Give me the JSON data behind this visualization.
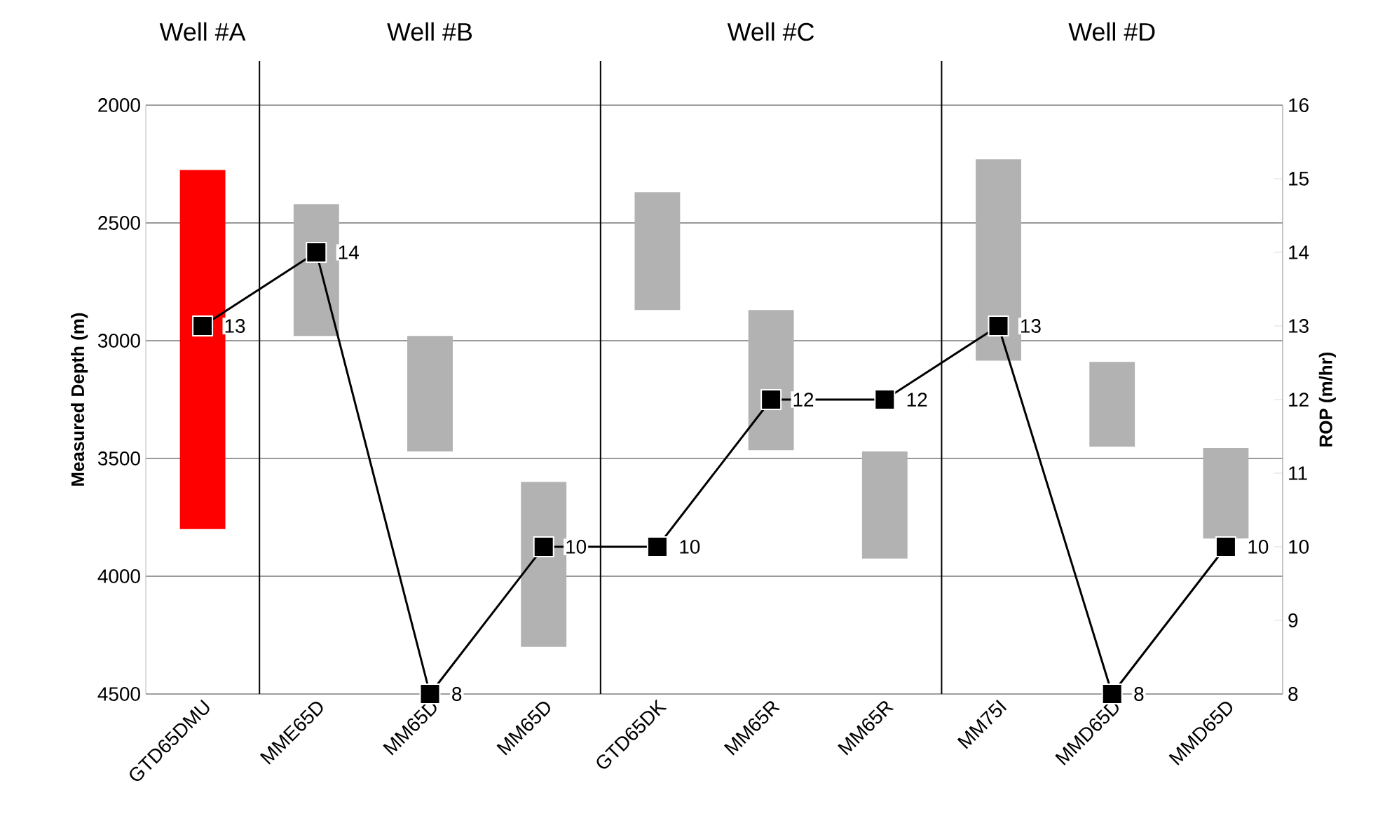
{
  "chart_data": {
    "type": "bar",
    "ylabel": "Measured Depth (m)",
    "y2label": "ROP (m/hr)",
    "categories": [
      "GTD65DMU",
      "MME65D",
      "MM65D",
      "MM65D",
      "GTD65DK",
      "MM65R",
      "MM65R",
      "MM75I",
      "MMD65D",
      "MMD65D"
    ],
    "series": [
      {
        "base": [
          2275,
          2420,
          2980,
          3600,
          2370,
          2870,
          3470,
          2230,
          3090,
          3455
        ],
        "values": [
          1525,
          560,
          490,
          700,
          500,
          595,
          455,
          855,
          360,
          385
        ],
        "colors": [
          "#ff0000",
          "#b2b2b2",
          "#b2b2b2",
          "#b2b2b2",
          "#b2b2b2",
          "#b2b2b2",
          "#b2b2b2",
          "#b2b2b2",
          "#b2b2b2",
          "#b2b2b2"
        ]
      },
      {
        "type": "line",
        "axis": "y2",
        "color": "#000000",
        "values": [
          13,
          14,
          8,
          10,
          10,
          12,
          12,
          13,
          8,
          10
        ],
        "value_labels": [
          "13",
          "14",
          "8",
          "10",
          "10",
          "12",
          "12",
          "13",
          "8",
          "10"
        ]
      }
    ],
    "ylim": [
      4500,
      2000
    ],
    "yticks": [
      2000,
      2500,
      3000,
      3500,
      4000,
      4500
    ],
    "y2lim": [
      8,
      16
    ],
    "y2ticks": [
      8,
      9,
      10,
      11,
      12,
      13,
      14,
      15,
      16
    ],
    "annotations": [
      "Well #A",
      "Well #B",
      "Well #C",
      "Well #D"
    ],
    "grid": "y",
    "marker": "square",
    "line_style": "solid",
    "legend": false
  }
}
